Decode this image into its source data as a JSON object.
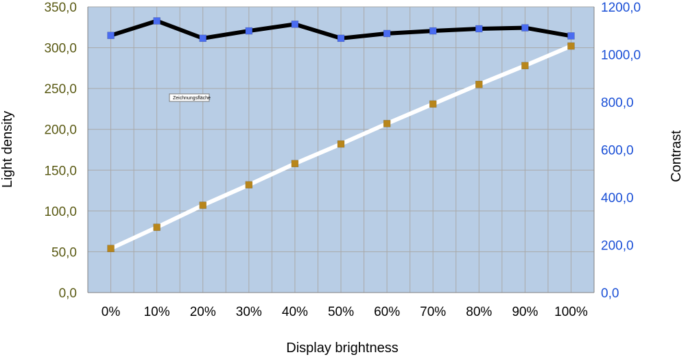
{
  "chart_data": {
    "type": "line",
    "categories": [
      "0%",
      "10%",
      "20%",
      "30%",
      "40%",
      "50%",
      "60%",
      "70%",
      "80%",
      "90%",
      "100%"
    ],
    "series": [
      {
        "axis": "right",
        "color": "#000000",
        "marker_color": "#4a6cf0",
        "values": [
          1080,
          1141,
          1068,
          1099,
          1127,
          1068,
          1088,
          1099,
          1108,
          1112,
          1078
        ]
      },
      {
        "axis": "left",
        "color": "#ffffff",
        "marker_color": "#b8861b",
        "values": [
          54,
          80,
          107,
          132,
          158,
          182,
          207,
          231,
          255,
          278,
          302
        ]
      }
    ],
    "xlabel": "Display brightness",
    "ylabel_left": "Light density",
    "ylabel_right": "Contrast",
    "ylim_left": [
      0,
      350
    ],
    "ylim_right": [
      0,
      1200
    ],
    "yticks_left": [
      "0,0",
      "50,0",
      "100,0",
      "150,0",
      "200,0",
      "250,0",
      "300,0",
      "350,0"
    ],
    "yticks_right": [
      "0,0",
      "200,0",
      "400,0",
      "600,0",
      "800,0",
      "1000,0",
      "1200,0"
    ],
    "tooltip": "Zeichnungsfläche",
    "grid": true,
    "plot_background": "#b8cde5",
    "left_tick_color": "#5a5a14",
    "right_tick_color": "#1a4fd6"
  }
}
